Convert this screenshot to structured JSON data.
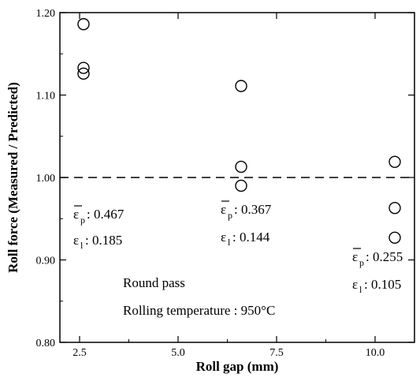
{
  "chart_data": {
    "type": "scatter",
    "xlabel": "Roll gap (mm)",
    "ylabel": "Roll force (Measured / Predicted)",
    "xlim": [
      2.0,
      11.0
    ],
    "ylim": [
      0.8,
      1.2
    ],
    "xticks": [
      2.5,
      5.0,
      7.5,
      10.0
    ],
    "xtick_labels": [
      "2.5",
      "5.0",
      "7.5",
      "10.0"
    ],
    "yticks": [
      0.8,
      0.9,
      1.0,
      1.1,
      1.2
    ],
    "ytick_labels": [
      "0.80",
      "0.90",
      "1.00",
      "1.10",
      "1.20"
    ],
    "reference_line": {
      "y": 1.0,
      "style": "dashed"
    },
    "points": [
      {
        "x": 2.6,
        "y": 1.186
      },
      {
        "x": 2.6,
        "y": 1.133
      },
      {
        "x": 2.6,
        "y": 1.126
      },
      {
        "x": 6.6,
        "y": 1.111
      },
      {
        "x": 6.6,
        "y": 1.013
      },
      {
        "x": 6.6,
        "y": 0.99
      },
      {
        "x": 10.5,
        "y": 1.019
      },
      {
        "x": 10.5,
        "y": 0.963
      },
      {
        "x": 10.5,
        "y": 0.927
      }
    ],
    "annotations": [
      {
        "p_label": "ε",
        "p_sub": "p",
        "p_value": ": 0.467",
        "l_label": "ε",
        "l_sub": "l",
        "l_value": ": 0.185"
      },
      {
        "p_label": "ε",
        "p_sub": "p",
        "p_value": ": 0.367",
        "l_label": "ε",
        "l_sub": "l",
        "l_value": ": 0.144"
      },
      {
        "p_label": "ε",
        "p_sub": "p",
        "p_value": ": 0.255",
        "l_label": "ε",
        "l_sub": "l",
        "l_value": ": 0.105"
      }
    ],
    "notes": {
      "pass": "Round pass",
      "temperature": "Rolling temperature : 950°C"
    }
  }
}
